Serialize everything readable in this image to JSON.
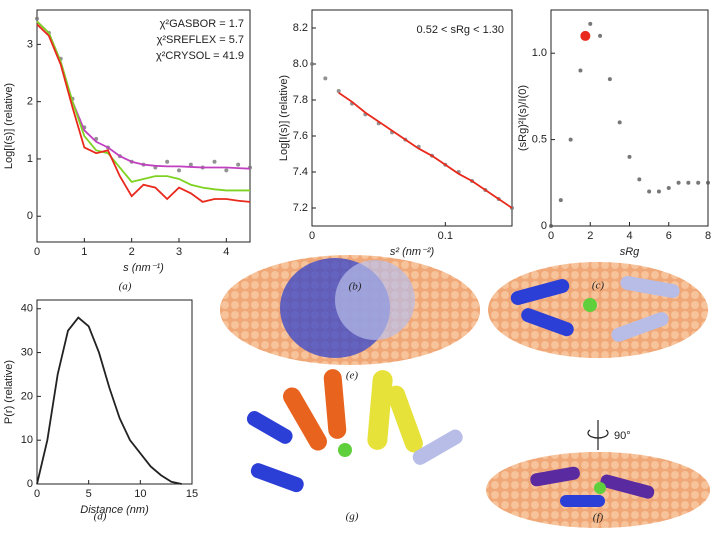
{
  "chart_data": [
    {
      "type": "line",
      "caption": "(a)",
      "xlabel": "s (nm⁻¹)",
      "ylabel": "Log[I(s)] (relative)",
      "x": [
        0,
        0.25,
        0.5,
        0.75,
        1,
        1.25,
        1.5,
        1.75,
        2,
        2.25,
        2.5,
        2.75,
        3,
        3.25,
        3.5,
        3.75,
        4,
        4.25,
        4.5
      ],
      "xlim": [
        0,
        4.5
      ],
      "xticks": [
        0,
        1,
        2,
        3,
        4
      ],
      "ylim": [
        -0.45,
        3.6
      ],
      "yticks": [
        0,
        1,
        2,
        3
      ],
      "series": [
        {
          "name": "data",
          "style": "points",
          "color": "#777",
          "values": [
            3.45,
            3.2,
            2.75,
            2.05,
            1.55,
            1.35,
            1.2,
            1.05,
            0.95,
            0.9,
            0.85,
            0.95,
            0.8,
            0.9,
            0.85,
            0.95,
            0.8,
            0.9,
            0.85
          ]
        },
        {
          "name": "χ²GASBOR = 1.7",
          "style": "line",
          "legend": true,
          "color": "#c040c0",
          "values": [
            3.4,
            3.2,
            2.7,
            2.0,
            1.5,
            1.3,
            1.2,
            1.05,
            0.95,
            0.9,
            0.88,
            0.87,
            0.87,
            0.86,
            0.85,
            0.85,
            0.85,
            0.84,
            0.83
          ]
        },
        {
          "name": "χ²SREFLEX = 5.7",
          "style": "line",
          "legend": true,
          "color": "#7ed321",
          "values": [
            3.4,
            3.2,
            2.7,
            2.0,
            1.4,
            1.15,
            1.1,
            0.85,
            0.6,
            0.65,
            0.7,
            0.7,
            0.65,
            0.55,
            0.5,
            0.47,
            0.45,
            0.45,
            0.45
          ]
        },
        {
          "name": "χ²CRYSOL = 41.9",
          "style": "line",
          "legend": true,
          "color": "#e8291c",
          "values": [
            3.35,
            3.15,
            2.65,
            1.9,
            1.2,
            1.1,
            1.15,
            0.7,
            0.35,
            0.55,
            0.5,
            0.3,
            0.5,
            0.4,
            0.25,
            0.3,
            0.3,
            0.27,
            0.25
          ]
        }
      ]
    },
    {
      "type": "scatter",
      "caption": "(b)",
      "xlabel": "s² (nm⁻²)",
      "ylabel": "Log[I(s)] (relative)",
      "annotation": "0.52 < sRg < 1.30",
      "x": [
        0,
        0.01,
        0.02,
        0.03,
        0.04,
        0.05,
        0.06,
        0.07,
        0.08,
        0.09,
        0.1,
        0.11,
        0.12,
        0.13,
        0.14,
        0.15
      ],
      "xlim": [
        0,
        0.15
      ],
      "xticks": [
        0,
        0.1
      ],
      "ylim": [
        7.1,
        8.3
      ],
      "yticks": [
        7.2,
        7.4,
        7.6,
        {
          "value": 7.8,
          "label": "7.8"
        },
        {
          "value": 8,
          "label": "8.0"
        },
        8.2
      ],
      "series": [
        {
          "name": "data",
          "style": "points",
          "color": "#777",
          "values": [
            8.0,
            7.92,
            7.85,
            7.78,
            7.72,
            7.67,
            7.62,
            7.58,
            7.54,
            7.49,
            7.44,
            7.4,
            7.35,
            7.3,
            7.25,
            7.2
          ]
        },
        {
          "name": "fit",
          "style": "line",
          "color": "#e8291c",
          "values": [
            null,
            null,
            7.84,
            7.79,
            7.73,
            7.68,
            7.63,
            7.58,
            7.53,
            7.49,
            7.44,
            7.39,
            7.35,
            7.3,
            7.25,
            7.2
          ]
        }
      ]
    },
    {
      "type": "scatter",
      "caption": "(c)",
      "xlabel": "sRg",
      "ylabel": "(sRg)²I(s)/I(0)",
      "x": [
        0,
        0.5,
        1,
        1.5,
        2,
        2.5,
        3,
        3.5,
        4,
        4.5,
        5,
        5.5,
        6,
        6.5,
        7,
        7.5,
        8
      ],
      "xlim": [
        0,
        8
      ],
      "xticks": [
        0,
        2,
        4,
        6,
        8
      ],
      "ylim": [
        0,
        1.25
      ],
      "yticks": [
        0,
        0.5,
        {
          "value": 1,
          "label": "1.0"
        }
      ],
      "series": [
        {
          "name": "data",
          "style": "points",
          "color": "#555",
          "values": [
            0,
            0.15,
            0.5,
            0.9,
            1.17,
            1.1,
            0.85,
            0.6,
            0.4,
            0.27,
            0.2,
            0.2,
            0.22,
            0.25,
            0.25,
            0.25,
            0.25
          ]
        }
      ],
      "marker": {
        "x": 1.75,
        "y": 1.1,
        "color": "#e8291c"
      }
    },
    {
      "type": "line",
      "caption": "(d)",
      "xlabel": "Distance (nm)",
      "ylabel": "P(r) (relative)",
      "x": [
        0,
        1,
        2,
        3,
        4,
        5,
        6,
        7,
        8,
        9,
        10,
        11,
        12,
        13,
        14
      ],
      "xlim": [
        0,
        15
      ],
      "xticks": [
        0,
        5,
        10,
        15
      ],
      "ylim": [
        0,
        42
      ],
      "yticks": [
        0,
        10,
        20,
        30,
        40
      ],
      "series": [
        {
          "name": "P(r)",
          "style": "line",
          "color": "#222",
          "values": [
            0,
            10,
            25,
            35,
            38,
            36,
            30,
            22,
            15,
            10,
            7,
            4,
            2,
            0.5,
            0
          ]
        }
      ]
    }
  ],
  "images": {
    "e": "(e)",
    "f": "(f)",
    "g": "(g)",
    "rotation": "90°"
  }
}
